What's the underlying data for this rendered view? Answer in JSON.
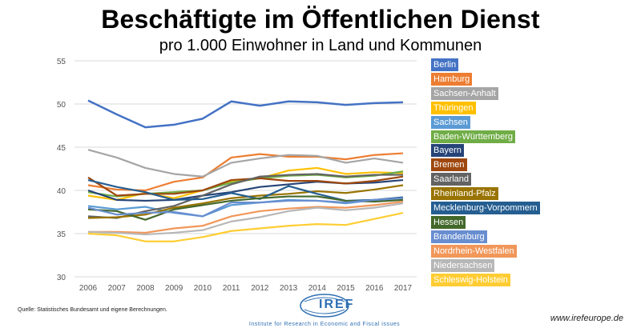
{
  "chart_data": {
    "type": "line",
    "title": "Beschäftigte im Öffentlichen Dienst",
    "subtitle": "pro 1.000  Einwohner in Land und Kommunen",
    "x": [
      "2006",
      "2007",
      "2008",
      "2009",
      "2010",
      "2011",
      "2012",
      "2013",
      "2014",
      "2015",
      "2016",
      "2017"
    ],
    "ylim": [
      30,
      55
    ],
    "yticks": [
      30,
      35,
      40,
      45,
      50,
      55
    ],
    "grid": true,
    "legend_position": "right",
    "series": [
      {
        "name": "Berlin",
        "color": "#4472c4",
        "values": [
          50.4,
          48.8,
          47.3,
          47.6,
          48.3,
          50.3,
          49.8,
          50.3,
          50.2,
          49.9,
          50.1,
          50.2
        ]
      },
      {
        "name": "Hamburg",
        "color": "#ed7d31",
        "values": [
          40.6,
          40.1,
          40.0,
          41.0,
          41.5,
          43.8,
          44.2,
          43.9,
          43.9,
          43.6,
          44.1,
          44.3
        ]
      },
      {
        "name": "Sachsen-Anhalt",
        "color": "#a5a5a5",
        "values": [
          44.7,
          43.8,
          42.6,
          41.9,
          41.6,
          43.2,
          43.7,
          44.1,
          44.0,
          43.2,
          43.7,
          43.2
        ]
      },
      {
        "name": "Thüringen",
        "color": "#ffc000",
        "values": [
          39.4,
          38.9,
          39.7,
          39.1,
          40.0,
          41.0,
          41.4,
          42.3,
          42.6,
          41.9,
          42.1,
          42.0
        ]
      },
      {
        "name": "Sachsen",
        "color": "#5b9bd5",
        "values": [
          38.2,
          37.8,
          38.1,
          37.4,
          37.0,
          38.3,
          38.6,
          38.9,
          38.8,
          38.5,
          38.9,
          39.0
        ]
      },
      {
        "name": "Baden-Württemberg",
        "color": "#70ad47",
        "values": [
          39.8,
          39.3,
          39.6,
          39.8,
          40.0,
          40.9,
          41.4,
          41.7,
          41.8,
          41.5,
          41.7,
          42.2
        ]
      },
      {
        "name": "Bayern",
        "color": "#264478",
        "values": [
          40.0,
          38.9,
          38.8,
          38.9,
          39.4,
          39.8,
          40.4,
          40.7,
          41.0,
          40.8,
          40.9,
          41.2
        ]
      },
      {
        "name": "Bremen",
        "color": "#9e480e",
        "values": [
          41.5,
          39.4,
          39.6,
          39.6,
          40.0,
          41.2,
          41.4,
          41.1,
          41.1,
          40.8,
          41.1,
          41.6
        ]
      },
      {
        "name": "Saarland",
        "color": "#636363",
        "values": [
          37.0,
          36.8,
          37.6,
          38.2,
          39.4,
          40.7,
          41.6,
          41.8,
          41.9,
          41.6,
          41.8,
          41.8
        ]
      },
      {
        "name": "Rheinland-Pfalz",
        "color": "#997300",
        "values": [
          36.8,
          36.9,
          37.2,
          38.0,
          38.5,
          39.1,
          39.4,
          39.6,
          39.9,
          39.7,
          40.1,
          40.6
        ]
      },
      {
        "name": "Mecklenburg-Vorpommern",
        "color": "#255e91",
        "values": [
          41.2,
          40.4,
          39.8,
          38.9,
          39.0,
          39.7,
          39.0,
          40.5,
          39.6,
          38.8,
          38.9,
          39.2
        ]
      },
      {
        "name": "Hessen",
        "color": "#43682b",
        "values": [
          37.8,
          37.6,
          36.6,
          37.8,
          38.3,
          38.8,
          39.1,
          39.3,
          39.3,
          38.8,
          38.7,
          38.9
        ]
      },
      {
        "name": "Brandenburg",
        "color": "#698ed0",
        "values": [
          38.0,
          37.2,
          37.4,
          37.5,
          37.0,
          38.6,
          38.6,
          38.8,
          38.8,
          38.6,
          38.9,
          39.1
        ]
      },
      {
        "name": "Nordrhein-Westfalen",
        "color": "#f1975a",
        "values": [
          35.2,
          35.2,
          35.1,
          35.6,
          35.9,
          37.0,
          37.6,
          37.9,
          38.1,
          38.0,
          38.3,
          38.7
        ]
      },
      {
        "name": "Niedersachsen",
        "color": "#b7b7b7",
        "values": [
          35.2,
          35.1,
          34.9,
          35.1,
          35.4,
          36.4,
          36.9,
          37.6,
          38.0,
          37.7,
          38.0,
          38.5
        ]
      },
      {
        "name": "Schleswig-Holstein",
        "color": "#ffcd33",
        "values": [
          35.0,
          34.8,
          34.1,
          34.1,
          34.6,
          35.3,
          35.6,
          35.9,
          36.1,
          36.0,
          36.7,
          37.4
        ]
      }
    ]
  },
  "footer": {
    "source": "Quelle: Statistisches Bundesamt und eigene Berechnungen.",
    "url": "www.irefeurope.de",
    "logo_text": "IREF",
    "institute": "Institute for Research in Economic and Fiscal issues"
  }
}
